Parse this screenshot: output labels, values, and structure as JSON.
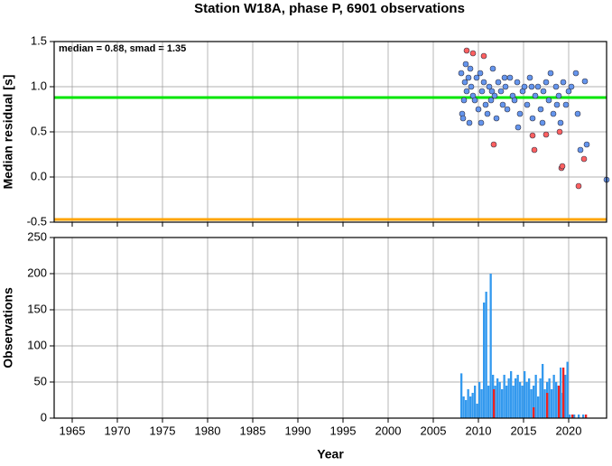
{
  "chart_data": [
    {
      "type": "scatter",
      "title": "Station W18A, phase P, 6901 observations",
      "annotation": "median = 0.88, smad = 1.35",
      "ylabel": "Median residual [s]",
      "xlim": [
        1963,
        2024.2
      ],
      "ylim": [
        -0.5,
        1.5
      ],
      "xticks": [
        1965,
        1970,
        1975,
        1980,
        1985,
        1990,
        1995,
        2000,
        2005,
        2010,
        2015,
        2020
      ],
      "yticks": [
        -0.5,
        {
          "value": 0,
          "label": "0.0"
        },
        0.5,
        {
          "value": 1,
          "label": "1.0"
        },
        1.5
      ],
      "grid": true,
      "lines": [
        {
          "value": 0.88,
          "color": "#00e600"
        },
        {
          "value": -0.47,
          "color": "#ffa500"
        }
      ],
      "series": [
        {
          "color": "#6495ed",
          "x": [
            2008.1,
            2008.2,
            2008.3,
            2008.5,
            2008.6,
            2008.7,
            2008.9,
            2009.0,
            2009.2,
            2009.4,
            2009.6,
            2009.8,
            2010.0,
            2010.2,
            2010.4,
            2010.6,
            2010.8,
            2011.0,
            2011.2,
            2011.4,
            2011.6,
            2011.8,
            2012.0,
            2012.2,
            2012.5,
            2012.7,
            2013.0,
            2013.2,
            2013.5,
            2013.8,
            2014.0,
            2014.3,
            2014.6,
            2014.9,
            2015.1,
            2015.4,
            2015.7,
            2016.0,
            2016.3,
            2016.6,
            2016.9,
            2017.2,
            2017.5,
            2017.8,
            2018.0,
            2018.3,
            2018.6,
            2018.9,
            2019.1,
            2019.4,
            2019.7,
            2020.0,
            2020.3,
            2020.8,
            2021.0,
            2021.3,
            2021.8,
            2022.0,
            2024.2,
            2008.4,
            2009.1,
            2010.3,
            2011.5,
            2012.9,
            2014.4,
            2015.9,
            2017.1,
            2018.7
          ],
          "values": [
            1.15,
            0.7,
            0.65,
            1.05,
            1.25,
            0.95,
            1.1,
            0.6,
            1.0,
            0.9,
            0.85,
            1.1,
            0.75,
            1.15,
            0.95,
            1.05,
            0.8,
            0.7,
            1.0,
            0.85,
            1.2,
            0.9,
            0.65,
            1.05,
            0.95,
            0.8,
            1.0,
            0.75,
            1.1,
            0.9,
            0.85,
            1.05,
            0.7,
            0.95,
            1.0,
            0.8,
            1.1,
            0.65,
            0.9,
            1.0,
            0.75,
            0.95,
            1.05,
            0.85,
            1.15,
            0.7,
            1.0,
            0.9,
            0.6,
            1.05,
            0.8,
            0.95,
            1.0,
            1.15,
            0.7,
            0.3,
            1.06,
            0.36,
            -0.03,
            0.85,
            1.2,
            0.6,
            0.95,
            1.1,
            0.55,
            1.0,
            0.6,
            0.8
          ]
        },
        {
          "color": "#ff6060",
          "x": [
            2008.7,
            2009.4,
            2010.6,
            2011.7,
            2016.0,
            2016.2,
            2017.5,
            2019.0,
            2019.2,
            2019.3,
            2021.1,
            2021.7
          ],
          "values": [
            1.4,
            1.37,
            1.34,
            0.36,
            0.46,
            0.3,
            0.47,
            0.5,
            0.1,
            0.12,
            -0.1,
            0.2
          ]
        }
      ]
    },
    {
      "type": "bar",
      "ylabel": "Observations",
      "xlabel": "Year",
      "xlim": [
        1963,
        2024.2
      ],
      "ylim": [
        0,
        250
      ],
      "xticks": [
        1965,
        1970,
        1975,
        1980,
        1985,
        1990,
        1995,
        2000,
        2005,
        2010,
        2015,
        2020
      ],
      "yticks": [
        0,
        50,
        100,
        150,
        200,
        250
      ],
      "grid": true,
      "series": [
        {
          "color": "#3399ee",
          "x": [
            2008,
            2008.25,
            2008.5,
            2008.75,
            2009,
            2009.25,
            2009.5,
            2009.75,
            2010,
            2010.25,
            2010.5,
            2010.75,
            2011,
            2011.25,
            2011.5,
            2011.75,
            2012,
            2012.25,
            2012.5,
            2012.75,
            2013,
            2013.25,
            2013.5,
            2013.75,
            2014,
            2014.25,
            2014.5,
            2014.75,
            2015,
            2015.25,
            2015.5,
            2015.75,
            2016,
            2016.25,
            2016.5,
            2016.75,
            2017,
            2017.25,
            2017.5,
            2017.75,
            2018,
            2018.25,
            2018.5,
            2018.75,
            2019,
            2019.25,
            2019.5,
            2019.75,
            2020,
            2020.5,
            2021,
            2021.5
          ],
          "values": [
            62,
            30,
            25,
            40,
            30,
            35,
            45,
            20,
            50,
            40,
            160,
            175,
            45,
            200,
            60,
            45,
            55,
            50,
            40,
            60,
            45,
            55,
            65,
            45,
            55,
            60,
            50,
            45,
            65,
            50,
            55,
            40,
            45,
            60,
            30,
            55,
            75,
            40,
            50,
            55,
            40,
            60,
            50,
            45,
            70,
            35,
            60,
            78,
            5,
            5,
            5,
            5
          ]
        },
        {
          "color": "#ee2222",
          "x": [
            2011.6,
            2016.0,
            2017.5,
            2018.8,
            2019.3,
            2020.3,
            2021.8
          ],
          "values": [
            40,
            15,
            35,
            45,
            70,
            5,
            5
          ]
        }
      ]
    }
  ]
}
